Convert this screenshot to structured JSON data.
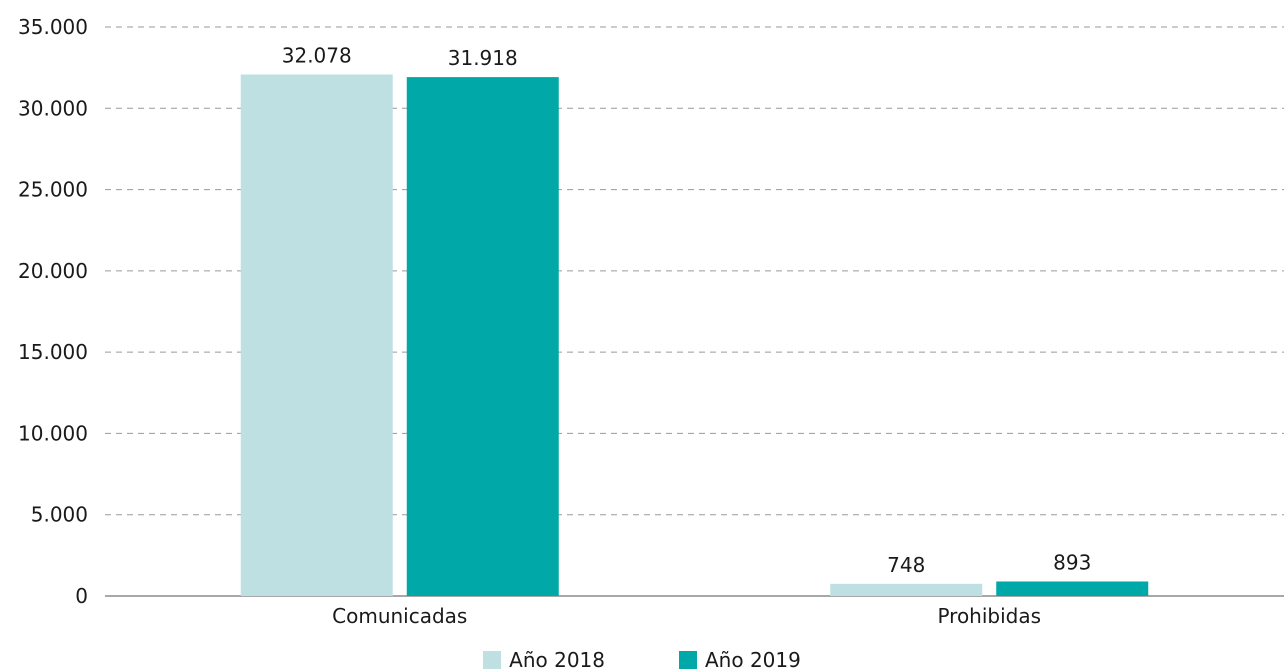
{
  "chart_data": {
    "type": "bar",
    "categories": [
      "Comunicadas",
      "Prohibidas"
    ],
    "series": [
      {
        "name": "Año 2018",
        "color": "#bfe0e3",
        "values": [
          32078,
          748
        ],
        "labels": [
          "32.078",
          "748"
        ]
      },
      {
        "name": "Año 2019",
        "color": "#00a9a8",
        "values": [
          31918,
          893
        ],
        "labels": [
          "31.918",
          "893"
        ]
      }
    ],
    "ylim": [
      0,
      35000
    ],
    "yticks": [
      0,
      5000,
      10000,
      15000,
      20000,
      25000,
      30000,
      35000
    ],
    "ytick_labels": [
      "0",
      "5.000",
      "10.000",
      "15.000",
      "20.000",
      "25.000",
      "30.000",
      "35.000"
    ],
    "grid": true,
    "legend": "bottom-center",
    "title": "",
    "xlabel": "",
    "ylabel": ""
  }
}
